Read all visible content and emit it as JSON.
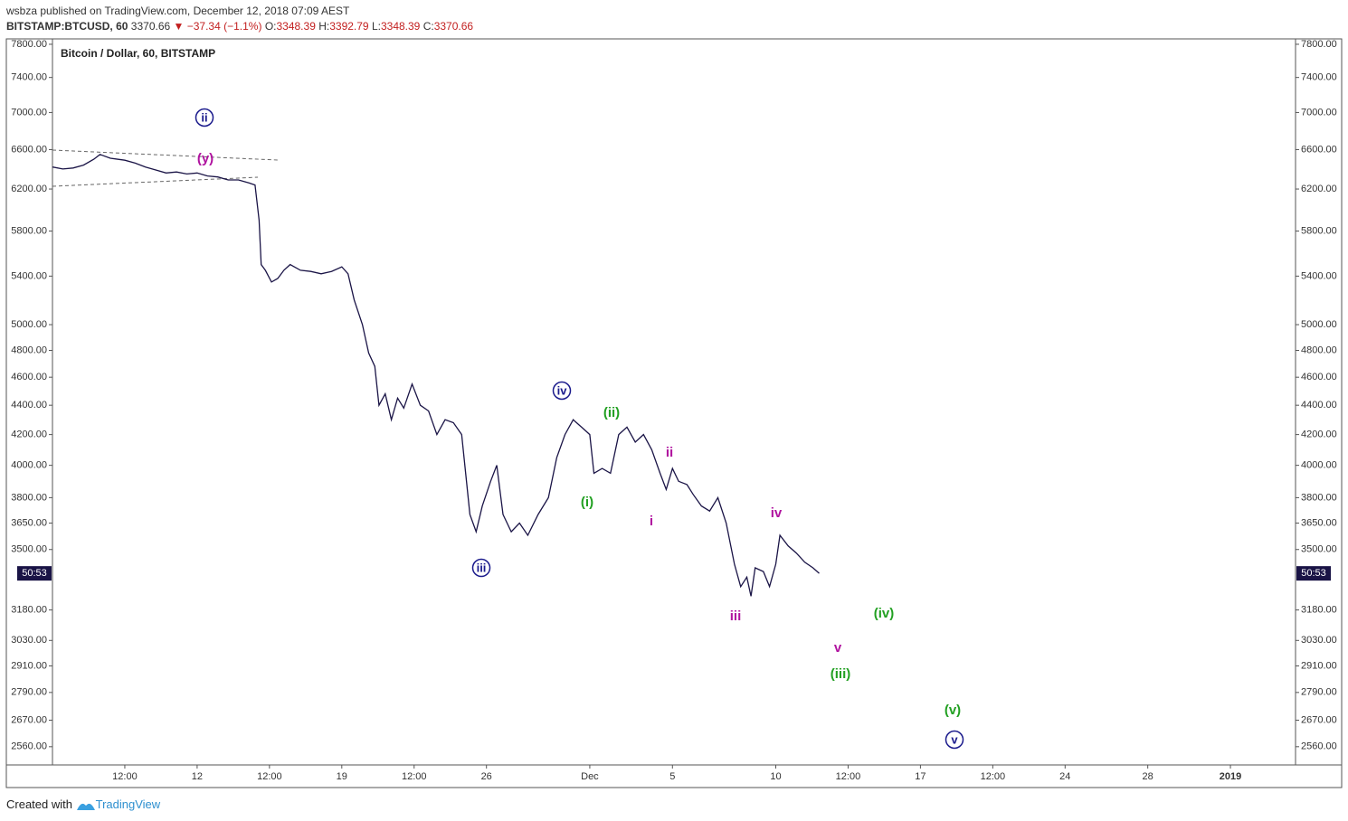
{
  "header": {
    "publisher": "wsbza published on TradingView.com, December 12, 2018 07:09 AEST",
    "symbol": "BITSTAMP:BTCUSD, 60",
    "last": "3370.66",
    "change": "▼ −37.34 (−1.1%)",
    "open_label": "O:",
    "open": "3348.39",
    "high_label": "H:",
    "high": "3392.79",
    "low_label": "L:",
    "low": "3348.39",
    "close_label": "C:",
    "close": "3370.66"
  },
  "chart_data": {
    "type": "line",
    "title": "Bitcoin / Dollar, 60, BITSTAMP",
    "color": "#1a1446",
    "log_scale": true,
    "grid": false,
    "countdown": "50:53",
    "x": [
      5.0,
      5.5,
      6.0,
      6.5,
      7.0,
      7.3,
      7.8,
      8.5,
      9.0,
      9.5,
      10.0,
      10.5,
      11.0,
      11.5,
      12.0,
      12.5,
      13.0,
      13.5,
      14.0,
      14.5,
      14.8,
      15.0,
      15.1,
      15.3,
      15.6,
      15.9,
      16.2,
      16.5,
      17.0,
      17.5,
      18.0,
      18.5,
      19.0,
      19.3,
      19.6,
      20.0,
      20.3,
      20.6,
      20.8,
      21.1,
      21.4,
      21.7,
      22.0,
      22.4,
      22.8,
      23.2,
      23.6,
      24.0,
      24.4,
      24.8,
      25.2,
      25.5,
      25.8,
      26.2,
      26.5,
      26.8,
      27.2,
      27.6,
      28.0,
      28.5,
      29.0,
      29.4,
      29.8,
      30.2,
      30.6,
      31.0,
      31.2,
      31.6,
      32.0,
      32.4,
      32.8,
      33.2,
      33.6,
      34.0,
      34.4,
      34.7,
      35.0,
      35.3,
      35.7,
      36.0,
      36.4,
      36.8,
      37.2,
      37.6,
      38.0,
      38.3,
      38.6,
      38.8,
      39.0,
      39.4,
      39.7,
      40.0,
      40.2,
      40.6,
      41.0,
      41.4,
      41.8,
      42.1
    ],
    "values": [
      6420,
      6400,
      6410,
      6440,
      6500,
      6550,
      6510,
      6490,
      6460,
      6420,
      6390,
      6360,
      6370,
      6350,
      6360,
      6330,
      6320,
      6290,
      6290,
      6260,
      6240,
      5900,
      5500,
      5450,
      5350,
      5380,
      5450,
      5500,
      5450,
      5440,
      5420,
      5440,
      5480,
      5420,
      5200,
      5000,
      4780,
      4680,
      4400,
      4480,
      4300,
      4450,
      4380,
      4550,
      4400,
      4360,
      4200,
      4300,
      4280,
      4200,
      3700,
      3600,
      3750,
      3900,
      4000,
      3700,
      3600,
      3650,
      3580,
      3700,
      3800,
      4050,
      4200,
      4300,
      4250,
      4200,
      3950,
      3980,
      3950,
      4200,
      4250,
      4150,
      4200,
      4100,
      3950,
      3850,
      3980,
      3900,
      3880,
      3820,
      3750,
      3720,
      3800,
      3650,
      3420,
      3300,
      3350,
      3250,
      3400,
      3380,
      3300,
      3420,
      3580,
      3520,
      3480,
      3430,
      3400,
      3370
    ],
    "xlim": [
      5.0,
      65.15
    ],
    "xticks": [
      {
        "value": 8.5,
        "label": "12:00"
      },
      12,
      {
        "value": 15.5,
        "label": "12:00"
      },
      19,
      {
        "value": 22.5,
        "label": "12:00"
      },
      26,
      {
        "value": 31,
        "label": "Dec"
      },
      {
        "value": 35,
        "label": "5"
      },
      {
        "value": 40,
        "label": "10"
      },
      {
        "value": 43.5,
        "label": "12:00"
      },
      {
        "value": 47,
        "label": "17"
      },
      {
        "value": 50.5,
        "label": "12:00"
      },
      {
        "value": 54,
        "label": "24"
      },
      {
        "value": 58,
        "label": "28"
      },
      {
        "value": 62,
        "label": "2019"
      }
    ],
    "ylim": [
      2487,
      7867
    ],
    "yticks": [
      {
        "value": 7800,
        "label": "7800.00"
      },
      {
        "value": 7400,
        "label": "7400.00"
      },
      {
        "value": 7000,
        "label": "7000.00"
      },
      {
        "value": 6600,
        "label": "6600.00"
      },
      {
        "value": 6200,
        "label": "6200.00"
      },
      {
        "value": 5800,
        "label": "5800.00"
      },
      {
        "value": 5400,
        "label": "5400.00"
      },
      {
        "value": 5000,
        "label": "5000.00"
      },
      {
        "value": 4800,
        "label": "4800.00"
      },
      {
        "value": 4600,
        "label": "4600.00"
      },
      {
        "value": 4400,
        "label": "4400.00"
      },
      {
        "value": 4200,
        "label": "4200.00"
      },
      {
        "value": 4000,
        "label": "4000.00"
      },
      {
        "value": 3800,
        "label": "3800.00"
      },
      {
        "value": 3650,
        "label": "3650.00"
      },
      {
        "value": 3500,
        "label": "3500.00"
      },
      {
        "value": 3180,
        "label": "3180.00"
      },
      {
        "value": 3030,
        "label": "3030.00"
      },
      {
        "value": 2910,
        "label": "2910.00"
      },
      {
        "value": 2790,
        "label": "2790.00"
      },
      {
        "value": 2670,
        "label": "2670.00"
      },
      {
        "value": 2560,
        "label": "2560.00"
      }
    ],
    "annotations": [
      {
        "text": "ii",
        "color": "#1a1a8c",
        "circled": true
      },
      {
        "text": "(y)",
        "color": "#b0139f"
      },
      {
        "text": "iii",
        "color": "#1a1a8c",
        "circled": true
      },
      {
        "text": "iv",
        "color": "#1a1a8c",
        "circled": true
      },
      {
        "text": "(i)",
        "color": "#22a022"
      },
      {
        "text": "(ii)",
        "color": "#22a022"
      },
      {
        "text": "i",
        "color": "#b0139f"
      },
      {
        "text": "ii",
        "color": "#b0139f"
      },
      {
        "text": "iii",
        "color": "#b0139f"
      },
      {
        "text": "iv",
        "color": "#b0139f"
      },
      {
        "text": "v",
        "color": "#b0139f"
      },
      {
        "text": "(iii)",
        "color": "#22a022"
      },
      {
        "text": "(iv)",
        "color": "#22a022"
      },
      {
        "text": "(v)",
        "color": "#22a022"
      },
      {
        "text": "v",
        "color": "#1a1a8c",
        "circled": true
      }
    ]
  },
  "footer": {
    "created": "Created with",
    "brand": "TradingView"
  }
}
